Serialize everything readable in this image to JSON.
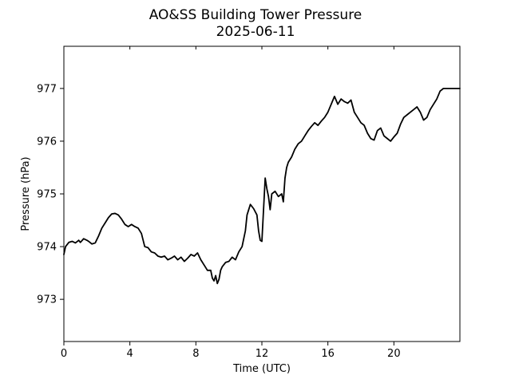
{
  "chart_data": {
    "type": "line",
    "title": "AO&SS Building Tower Pressure",
    "subtitle": "2025-06-11",
    "xlabel": "Time (UTC)",
    "ylabel": "Pressure (hPa)",
    "xlim": [
      0,
      24
    ],
    "ylim": [
      972.2,
      977.8
    ],
    "xticks": [
      0,
      4,
      8,
      12,
      16,
      20
    ],
    "yticks": [
      973,
      974,
      975,
      976,
      977
    ],
    "grid": false,
    "legend": "none",
    "line_color": "#000000",
    "series": [
      {
        "x": [
          0,
          0.1,
          0.3,
          0.5,
          0.7,
          0.9,
          1.0,
          1.2,
          1.4,
          1.5,
          1.7,
          1.9,
          2.1,
          2.3,
          2.5,
          2.7,
          2.9,
          3.1,
          3.3,
          3.5,
          3.7,
          3.9,
          4.1,
          4.3,
          4.5,
          4.7,
          4.9,
          5.1,
          5.3,
          5.5,
          5.7,
          5.9,
          6.1,
          6.3,
          6.5,
          6.7,
          6.9,
          7.1,
          7.3,
          7.5,
          7.7,
          7.9,
          8.1,
          8.3,
          8.5,
          8.7,
          8.9,
          9.0,
          9.1,
          9.2,
          9.3,
          9.4,
          9.5,
          9.6,
          9.8,
          10.0,
          10.2,
          10.4,
          10.6,
          10.8,
          11.0,
          11.1,
          11.3,
          11.5,
          11.7,
          11.8,
          11.9,
          12.0,
          12.1,
          12.2,
          12.3,
          12.4,
          12.5,
          12.6,
          12.8,
          13.0,
          13.2,
          13.3,
          13.4,
          13.5,
          13.6,
          13.8,
          14.0,
          14.2,
          14.4,
          14.6,
          14.8,
          15.0,
          15.2,
          15.4,
          15.6,
          15.8,
          16.0,
          16.2,
          16.4,
          16.6,
          16.8,
          17.0,
          17.2,
          17.4,
          17.6,
          17.8,
          18.0,
          18.2,
          18.4,
          18.6,
          18.8,
          19.0,
          19.2,
          19.4,
          19.6,
          19.8,
          20.0,
          20.2,
          20.4,
          20.6,
          20.8,
          21.0,
          21.2,
          21.4,
          21.6,
          21.8,
          22.0,
          22.2,
          22.4,
          22.6,
          22.8,
          23.0,
          23.2,
          23.4,
          23.6,
          23.8,
          24.0
        ],
        "values": [
          973.85,
          974.0,
          974.08,
          974.1,
          974.07,
          974.12,
          974.08,
          974.15,
          974.12,
          974.1,
          974.05,
          974.07,
          974.2,
          974.35,
          974.45,
          974.55,
          974.62,
          974.63,
          974.6,
          974.52,
          974.42,
          974.38,
          974.42,
          974.38,
          974.35,
          974.25,
          974.0,
          973.98,
          973.9,
          973.88,
          973.82,
          973.8,
          973.82,
          973.75,
          973.78,
          973.82,
          973.75,
          973.8,
          973.72,
          973.78,
          973.85,
          973.82,
          973.88,
          973.75,
          973.65,
          973.55,
          973.55,
          973.4,
          973.35,
          973.45,
          973.3,
          973.38,
          973.55,
          973.62,
          973.7,
          973.72,
          973.8,
          973.75,
          973.9,
          974.0,
          974.3,
          974.6,
          974.8,
          974.72,
          974.6,
          974.3,
          974.12,
          974.1,
          974.7,
          975.3,
          975.1,
          974.95,
          974.7,
          975.0,
          975.05,
          974.95,
          975.0,
          974.85,
          975.3,
          975.5,
          975.6,
          975.7,
          975.85,
          975.95,
          976.0,
          976.1,
          976.2,
          976.28,
          976.35,
          976.3,
          976.38,
          976.45,
          976.55,
          976.7,
          976.85,
          976.7,
          976.8,
          976.75,
          976.72,
          976.78,
          976.55,
          976.45,
          976.35,
          976.3,
          976.15,
          976.05,
          976.02,
          976.2,
          976.25,
          976.1,
          976.05,
          976.0,
          976.08,
          976.15,
          976.32,
          976.45,
          976.5,
          976.55,
          976.6,
          976.65,
          976.55,
          976.4,
          976.45,
          976.6,
          976.7,
          976.8,
          976.95,
          977.0,
          977.0,
          977.0,
          977.0,
          977.0,
          977.0
        ]
      }
    ]
  }
}
